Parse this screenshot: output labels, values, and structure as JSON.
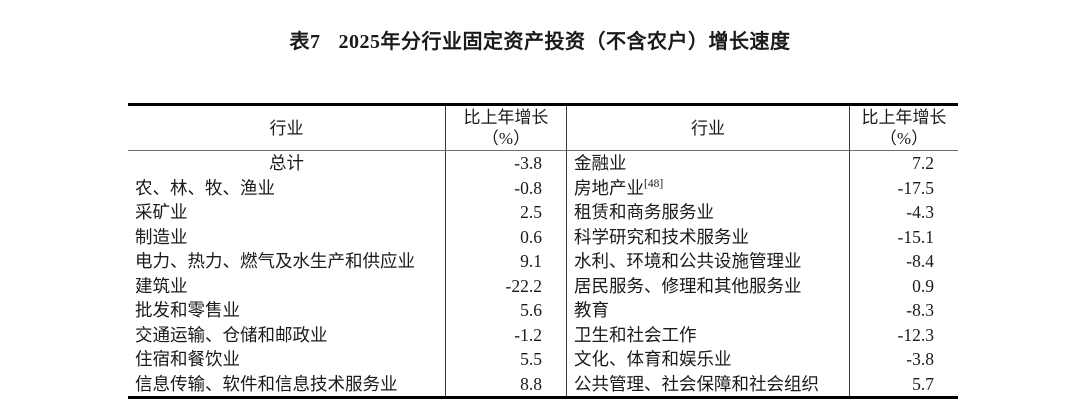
{
  "caption": {
    "label": "表7",
    "text": "2025年分行业固定资产投资（不含农户）增长速度"
  },
  "colors": {
    "background": "#ffffff",
    "text": "#1a1a1a",
    "heavy_rule": "#000000",
    "header_rule": "#707070",
    "column_rule": "#3a3a3a"
  },
  "table": {
    "header": {
      "industry": "行业",
      "growth_line1": "比上年增长",
      "growth_line2": "（%）"
    },
    "rows": [
      {
        "c0": "总计",
        "v0": "-3.8",
        "c1": "金融业",
        "c1_sup": "",
        "v1": "7.2"
      },
      {
        "c0": "农、林、牧、渔业",
        "v0": "-0.8",
        "c1": "房地产业",
        "c1_sup": "[48]",
        "v1": "-17.5"
      },
      {
        "c0": "采矿业",
        "v0": "2.5",
        "c1": "租赁和商务服务业",
        "c1_sup": "",
        "v1": "-4.3"
      },
      {
        "c0": "制造业",
        "v0": "0.6",
        "c1": "科学研究和技术服务业",
        "c1_sup": "",
        "v1": "-15.1"
      },
      {
        "c0": "电力、热力、燃气及水生产和供应业",
        "v0": "9.1",
        "c1": "水利、环境和公共设施管理业",
        "c1_sup": "",
        "v1": "-8.4"
      },
      {
        "c0": "建筑业",
        "v0": "-22.2",
        "c1": "居民服务、修理和其他服务业",
        "c1_sup": "",
        "v1": "0.9"
      },
      {
        "c0": "批发和零售业",
        "v0": "5.6",
        "c1": "教育",
        "c1_sup": "",
        "v1": "-8.3"
      },
      {
        "c0": "交通运输、仓储和邮政业",
        "v0": "-1.2",
        "c1": "卫生和社会工作",
        "c1_sup": "",
        "v1": "-12.3"
      },
      {
        "c0": "住宿和餐饮业",
        "v0": "5.5",
        "c1": "文化、体育和娱乐业",
        "c1_sup": "",
        "v1": "-3.8"
      },
      {
        "c0": "信息传输、软件和信息技术服务业",
        "v0": "8.8",
        "c1": "公共管理、社会保障和社会组织",
        "c1_sup": "",
        "v1": "5.7"
      }
    ]
  }
}
